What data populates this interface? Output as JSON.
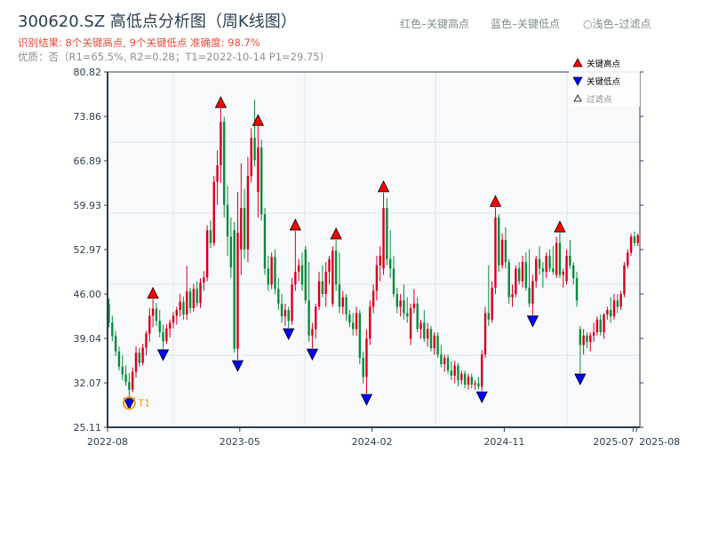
{
  "header": {
    "title": "300620.SZ 高低点分析图（周K线图）",
    "result": "识别结果: 8个关键高点, 9个关键低点  准确度: 98.7%",
    "quality": "优质：否（R1=65.5%, R2=0.28；T1=2022-10-14 P1=29.75)",
    "legend_red": "红色–关键高点",
    "legend_blue": "蓝色–关键低点",
    "legend_light": "○浅色–过滤点"
  },
  "colors": {
    "up": "#d0021b",
    "down": "#0b8a3c",
    "high_marker": "#ff0000",
    "low_marker": "#0000ff",
    "t1": "#f39c12",
    "plot_bg": "#f7f9fb",
    "axis": "#2c3e50"
  },
  "chart_data": {
    "type": "candlestick",
    "ylim": [
      25.11,
      80.82
    ],
    "y_ticks": [
      "25.11",
      "32.07",
      "39.04",
      "46.00",
      "52.97",
      "59.93",
      "66.89",
      "73.86",
      "80.82"
    ],
    "x_ticks": [
      {
        "label": "2022-08",
        "week": 0
      },
      {
        "label": "2023-05",
        "week": 39
      },
      {
        "label": "2024-02",
        "week": 78
      },
      {
        "label": "2024-11",
        "week": 117
      },
      {
        "label": "2025-07",
        "week": 155
      },
      {
        "label": "2025-08",
        "week": 156
      }
    ],
    "grid": true,
    "legend": {
      "position": "top-right",
      "items": [
        "关键高点",
        "关键低点",
        "过滤点"
      ]
    },
    "ohlc": [
      [
        44.5,
        45.3,
        40.8,
        41.5
      ],
      [
        41.5,
        42.6,
        38.6,
        39.4
      ],
      [
        39.4,
        40.2,
        36.3,
        37.0
      ],
      [
        37.0,
        37.8,
        34.0,
        34.6
      ],
      [
        34.6,
        36.4,
        32.5,
        33.4
      ],
      [
        33.4,
        34.8,
        31.6,
        32.2
      ],
      [
        32.2,
        33.6,
        29.75,
        31.0
      ],
      [
        31.0,
        34.5,
        30.6,
        33.8
      ],
      [
        33.8,
        37.8,
        32.9,
        36.8
      ],
      [
        36.8,
        37.6,
        34.6,
        35.2
      ],
      [
        35.2,
        38.2,
        34.8,
        37.6
      ],
      [
        37.6,
        40.2,
        36.4,
        39.8
      ],
      [
        39.8,
        43.8,
        38.5,
        42.6
      ],
      [
        42.6,
        45.2,
        40.8,
        43.7
      ],
      [
        43.7,
        44.6,
        41.0,
        41.8
      ],
      [
        41.8,
        43.5,
        39.2,
        40.0
      ],
      [
        40.0,
        41.2,
        37.4,
        38.6
      ],
      [
        38.6,
        41.3,
        38.2,
        40.6
      ],
      [
        40.6,
        42.0,
        39.2,
        41.5
      ],
      [
        41.5,
        43.2,
        40.6,
        42.6
      ],
      [
        42.6,
        44.0,
        41.2,
        43.5
      ],
      [
        43.5,
        46.0,
        42.5,
        44.8
      ],
      [
        44.8,
        45.6,
        42.0,
        42.8
      ],
      [
        42.8,
        50.4,
        42.0,
        46.4
      ],
      [
        46.4,
        47.0,
        43.0,
        43.8
      ],
      [
        43.8,
        47.6,
        43.2,
        46.8
      ],
      [
        46.8,
        48.0,
        44.0,
        44.6
      ],
      [
        44.6,
        48.5,
        43.8,
        47.8
      ],
      [
        47.8,
        49.6,
        46.5,
        48.6
      ],
      [
        48.6,
        56.8,
        48.0,
        56.0
      ],
      [
        56.0,
        57.5,
        53.2,
        54.0
      ],
      [
        54.0,
        64.5,
        53.5,
        63.6
      ],
      [
        63.6,
        68.5,
        60.0,
        66.2
      ],
      [
        66.2,
        75.1,
        63.4,
        73.0
      ],
      [
        73.0,
        73.8,
        58.0,
        60.0
      ],
      [
        60.0,
        63.0,
        52.0,
        55.0
      ],
      [
        55.0,
        58.0,
        48.5,
        50.2
      ],
      [
        56.0,
        57.3,
        36.8,
        37.4
      ],
      [
        37.4,
        62.0,
        35.7,
        55.6
      ],
      [
        53.0,
        66.5,
        49.0,
        59.5
      ],
      [
        59.5,
        62.5,
        51.5,
        53.0
      ],
      [
        53.0,
        67.5,
        51.0,
        64.5
      ],
      [
        64.5,
        72.0,
        63.5,
        70.5
      ],
      [
        70.5,
        76.4,
        66.0,
        67.0
      ],
      [
        62.0,
        72.3,
        58.0,
        69.0
      ],
      [
        69.0,
        70.2,
        57.5,
        58.5
      ],
      [
        58.5,
        59.5,
        49.0,
        50.0
      ],
      [
        50.0,
        52.0,
        46.5,
        47.5
      ],
      [
        47.5,
        52.5,
        46.8,
        51.8
      ],
      [
        51.8,
        53.0,
        46.0,
        46.8
      ],
      [
        46.8,
        48.5,
        43.5,
        44.5
      ],
      [
        44.5,
        46.0,
        41.5,
        42.5
      ],
      [
        42.5,
        44.5,
        41.0,
        43.5
      ],
      [
        43.5,
        44.0,
        40.7,
        41.8
      ],
      [
        41.8,
        48.5,
        41.2,
        47.5
      ],
      [
        47.5,
        55.9,
        46.5,
        49.5
      ],
      [
        49.5,
        51.5,
        48.0,
        50.5
      ],
      [
        50.5,
        52.5,
        46.5,
        47.5
      ],
      [
        53.0,
        53.5,
        44.5,
        45.0
      ],
      [
        45.0,
        51.0,
        38.5,
        39.5
      ],
      [
        39.5,
        41.5,
        37.5,
        40.5
      ],
      [
        40.5,
        44.5,
        39.0,
        44.0
      ],
      [
        44.0,
        49.5,
        43.5,
        48.0
      ],
      [
        48.0,
        50.5,
        45.5,
        46.0
      ],
      [
        46.0,
        51.0,
        44.0,
        49.5
      ],
      [
        49.5,
        52.0,
        47.5,
        51.5
      ],
      [
        44.5,
        53.5,
        44.0,
        52.8
      ],
      [
        52.8,
        54.5,
        46.5,
        47.5
      ],
      [
        47.5,
        52.5,
        43.0,
        44.0
      ],
      [
        44.0,
        46.5,
        42.8,
        45.5
      ],
      [
        45.5,
        46.0,
        41.8,
        42.8
      ],
      [
        42.8,
        43.5,
        40.8,
        41.5
      ],
      [
        41.5,
        43.0,
        39.5,
        40.5
      ],
      [
        40.5,
        44.0,
        39.5,
        43.0
      ],
      [
        43.0,
        43.5,
        35.0,
        36.0
      ],
      [
        36.0,
        37.0,
        32.0,
        33.0
      ],
      [
        33.0,
        40.5,
        30.4,
        39.0
      ],
      [
        39.0,
        45.0,
        38.0,
        44.0
      ],
      [
        44.0,
        47.5,
        43.0,
        46.5
      ],
      [
        46.5,
        52.0,
        45.0,
        50.5
      ],
      [
        50.5,
        53.5,
        48.0,
        52.0
      ],
      [
        50.0,
        61.9,
        49.0,
        59.5
      ],
      [
        59.5,
        61.0,
        50.5,
        51.5
      ],
      [
        51.5,
        56.0,
        48.5,
        50.0
      ],
      [
        50.0,
        52.0,
        45.5,
        46.0
      ],
      [
        46.0,
        47.0,
        43.0,
        44.0
      ],
      [
        44.0,
        46.0,
        42.5,
        45.0
      ],
      [
        45.0,
        47.5,
        42.0,
        43.0
      ],
      [
        43.0,
        45.5,
        41.5,
        42.5
      ],
      [
        39.0,
        44.5,
        38.0,
        43.8
      ],
      [
        43.8,
        46.8,
        43.0,
        44.5
      ],
      [
        44.5,
        45.5,
        40.0,
        40.5
      ],
      [
        40.5,
        42.0,
        39.0,
        41.5
      ],
      [
        41.5,
        43.5,
        38.5,
        39.0
      ],
      [
        39.0,
        41.5,
        37.8,
        40.5
      ],
      [
        40.5,
        41.0,
        37.0,
        37.5
      ],
      [
        37.5,
        40.0,
        36.5,
        39.5
      ],
      [
        39.5,
        40.0,
        36.0,
        36.5
      ],
      [
        36.5,
        38.0,
        34.5,
        35.0
      ],
      [
        35.0,
        36.5,
        33.8,
        36.0
      ],
      [
        36.0,
        36.5,
        33.5,
        34.0
      ],
      [
        34.0,
        35.5,
        32.5,
        33.2
      ],
      [
        33.2,
        35.5,
        32.0,
        34.8
      ],
      [
        34.8,
        35.2,
        31.5,
        32.5
      ],
      [
        32.5,
        34.0,
        31.8,
        33.5
      ],
      [
        33.5,
        34.0,
        31.2,
        31.8
      ],
      [
        31.8,
        33.5,
        31.0,
        33.0
      ],
      [
        33.0,
        33.5,
        31.2,
        31.8
      ],
      [
        31.8,
        32.5,
        31.0,
        32.0
      ],
      [
        32.0,
        33.0,
        31.0,
        31.5
      ],
      [
        31.5,
        37.2,
        30.8,
        36.5
      ],
      [
        36.5,
        44.0,
        36.0,
        43.0
      ],
      [
        43.0,
        50.5,
        41.0,
        42.0
      ],
      [
        42.0,
        48.0,
        41.5,
        47.0
      ],
      [
        47.0,
        59.6,
        46.0,
        58.0
      ],
      [
        58.0,
        58.5,
        49.5,
        50.5
      ],
      [
        50.5,
        55.5,
        50.0,
        54.5
      ],
      [
        54.5,
        56.5,
        50.0,
        51.0
      ],
      [
        51.0,
        51.5,
        44.5,
        45.5
      ],
      [
        45.5,
        47.5,
        44.0,
        46.0
      ],
      [
        46.0,
        50.5,
        45.5,
        50.0
      ],
      [
        50.0,
        51.0,
        47.5,
        48.0
      ],
      [
        48.0,
        52.0,
        47.0,
        51.0
      ],
      [
        51.0,
        52.5,
        46.5,
        47.0
      ],
      [
        47.0,
        53.0,
        44.0,
        44.5
      ],
      [
        44.5,
        49.0,
        42.7,
        48.0
      ],
      [
        48.0,
        52.0,
        47.0,
        51.5
      ],
      [
        51.5,
        53.5,
        49.0,
        50.0
      ],
      [
        50.0,
        51.0,
        47.0,
        49.5
      ],
      [
        49.5,
        52.5,
        48.5,
        52.0
      ],
      [
        52.0,
        53.0,
        49.5,
        50.0
      ],
      [
        50.0,
        53.5,
        49.0,
        49.5
      ],
      [
        49.0,
        55.0,
        48.5,
        54.0
      ],
      [
        54.0,
        55.6,
        48.5,
        49.0
      ],
      [
        49.0,
        50.0,
        47.0,
        49.5
      ],
      [
        48.0,
        53.0,
        47.5,
        52.0
      ],
      [
        52.0,
        54.5,
        50.0,
        50.5
      ],
      [
        50.5,
        51.0,
        47.5,
        48.5
      ],
      [
        48.5,
        49.5,
        44.0,
        45.0
      ],
      [
        40.5,
        41.0,
        33.6,
        38.0
      ],
      [
        38.0,
        40.5,
        36.5,
        39.5
      ],
      [
        39.5,
        40.0,
        37.5,
        38.5
      ],
      [
        38.5,
        40.0,
        37.0,
        39.5
      ],
      [
        39.5,
        41.5,
        38.5,
        40.0
      ],
      [
        40.0,
        42.5,
        39.5,
        42.0
      ],
      [
        42.0,
        42.8,
        39.5,
        40.0
      ],
      [
        40.0,
        43.0,
        39.0,
        42.8
      ],
      [
        42.8,
        44.0,
        42.0,
        43.5
      ],
      [
        43.5,
        45.5,
        41.5,
        42.5
      ],
      [
        42.5,
        46.0,
        42.0,
        45.0
      ],
      [
        45.0,
        46.0,
        43.0,
        44.0
      ],
      [
        44.0,
        46.5,
        43.5,
        46.0
      ],
      [
        46.0,
        51.0,
        45.5,
        50.5
      ],
      [
        50.5,
        53.0,
        50.0,
        52.5
      ],
      [
        52.5,
        55.5,
        52.0,
        55.0
      ],
      [
        55.0,
        55.8,
        53.5,
        54.0
      ],
      [
        54.0,
        55.5,
        53.5,
        55.2
      ]
    ],
    "key_highs": [
      {
        "week": 13,
        "price": 45.2
      },
      {
        "week": 33,
        "price": 75.1
      },
      {
        "week": 44,
        "price": 72.3
      },
      {
        "week": 55,
        "price": 55.9
      },
      {
        "week": 67,
        "price": 54.5
      },
      {
        "week": 81,
        "price": 61.9
      },
      {
        "week": 114,
        "price": 59.6
      },
      {
        "week": 133,
        "price": 55.6
      }
    ],
    "key_lows": [
      {
        "week": 6,
        "price": 29.75
      },
      {
        "week": 16,
        "price": 37.4
      },
      {
        "week": 38,
        "price": 35.7
      },
      {
        "week": 53,
        "price": 40.7
      },
      {
        "week": 60,
        "price": 37.5
      },
      {
        "week": 76,
        "price": 30.4
      },
      {
        "week": 110,
        "price": 30.8
      },
      {
        "week": 125,
        "price": 42.7
      },
      {
        "week": 139,
        "price": 33.6
      }
    ],
    "t1": {
      "label": "T1",
      "week": 6,
      "price": 29.75
    }
  }
}
